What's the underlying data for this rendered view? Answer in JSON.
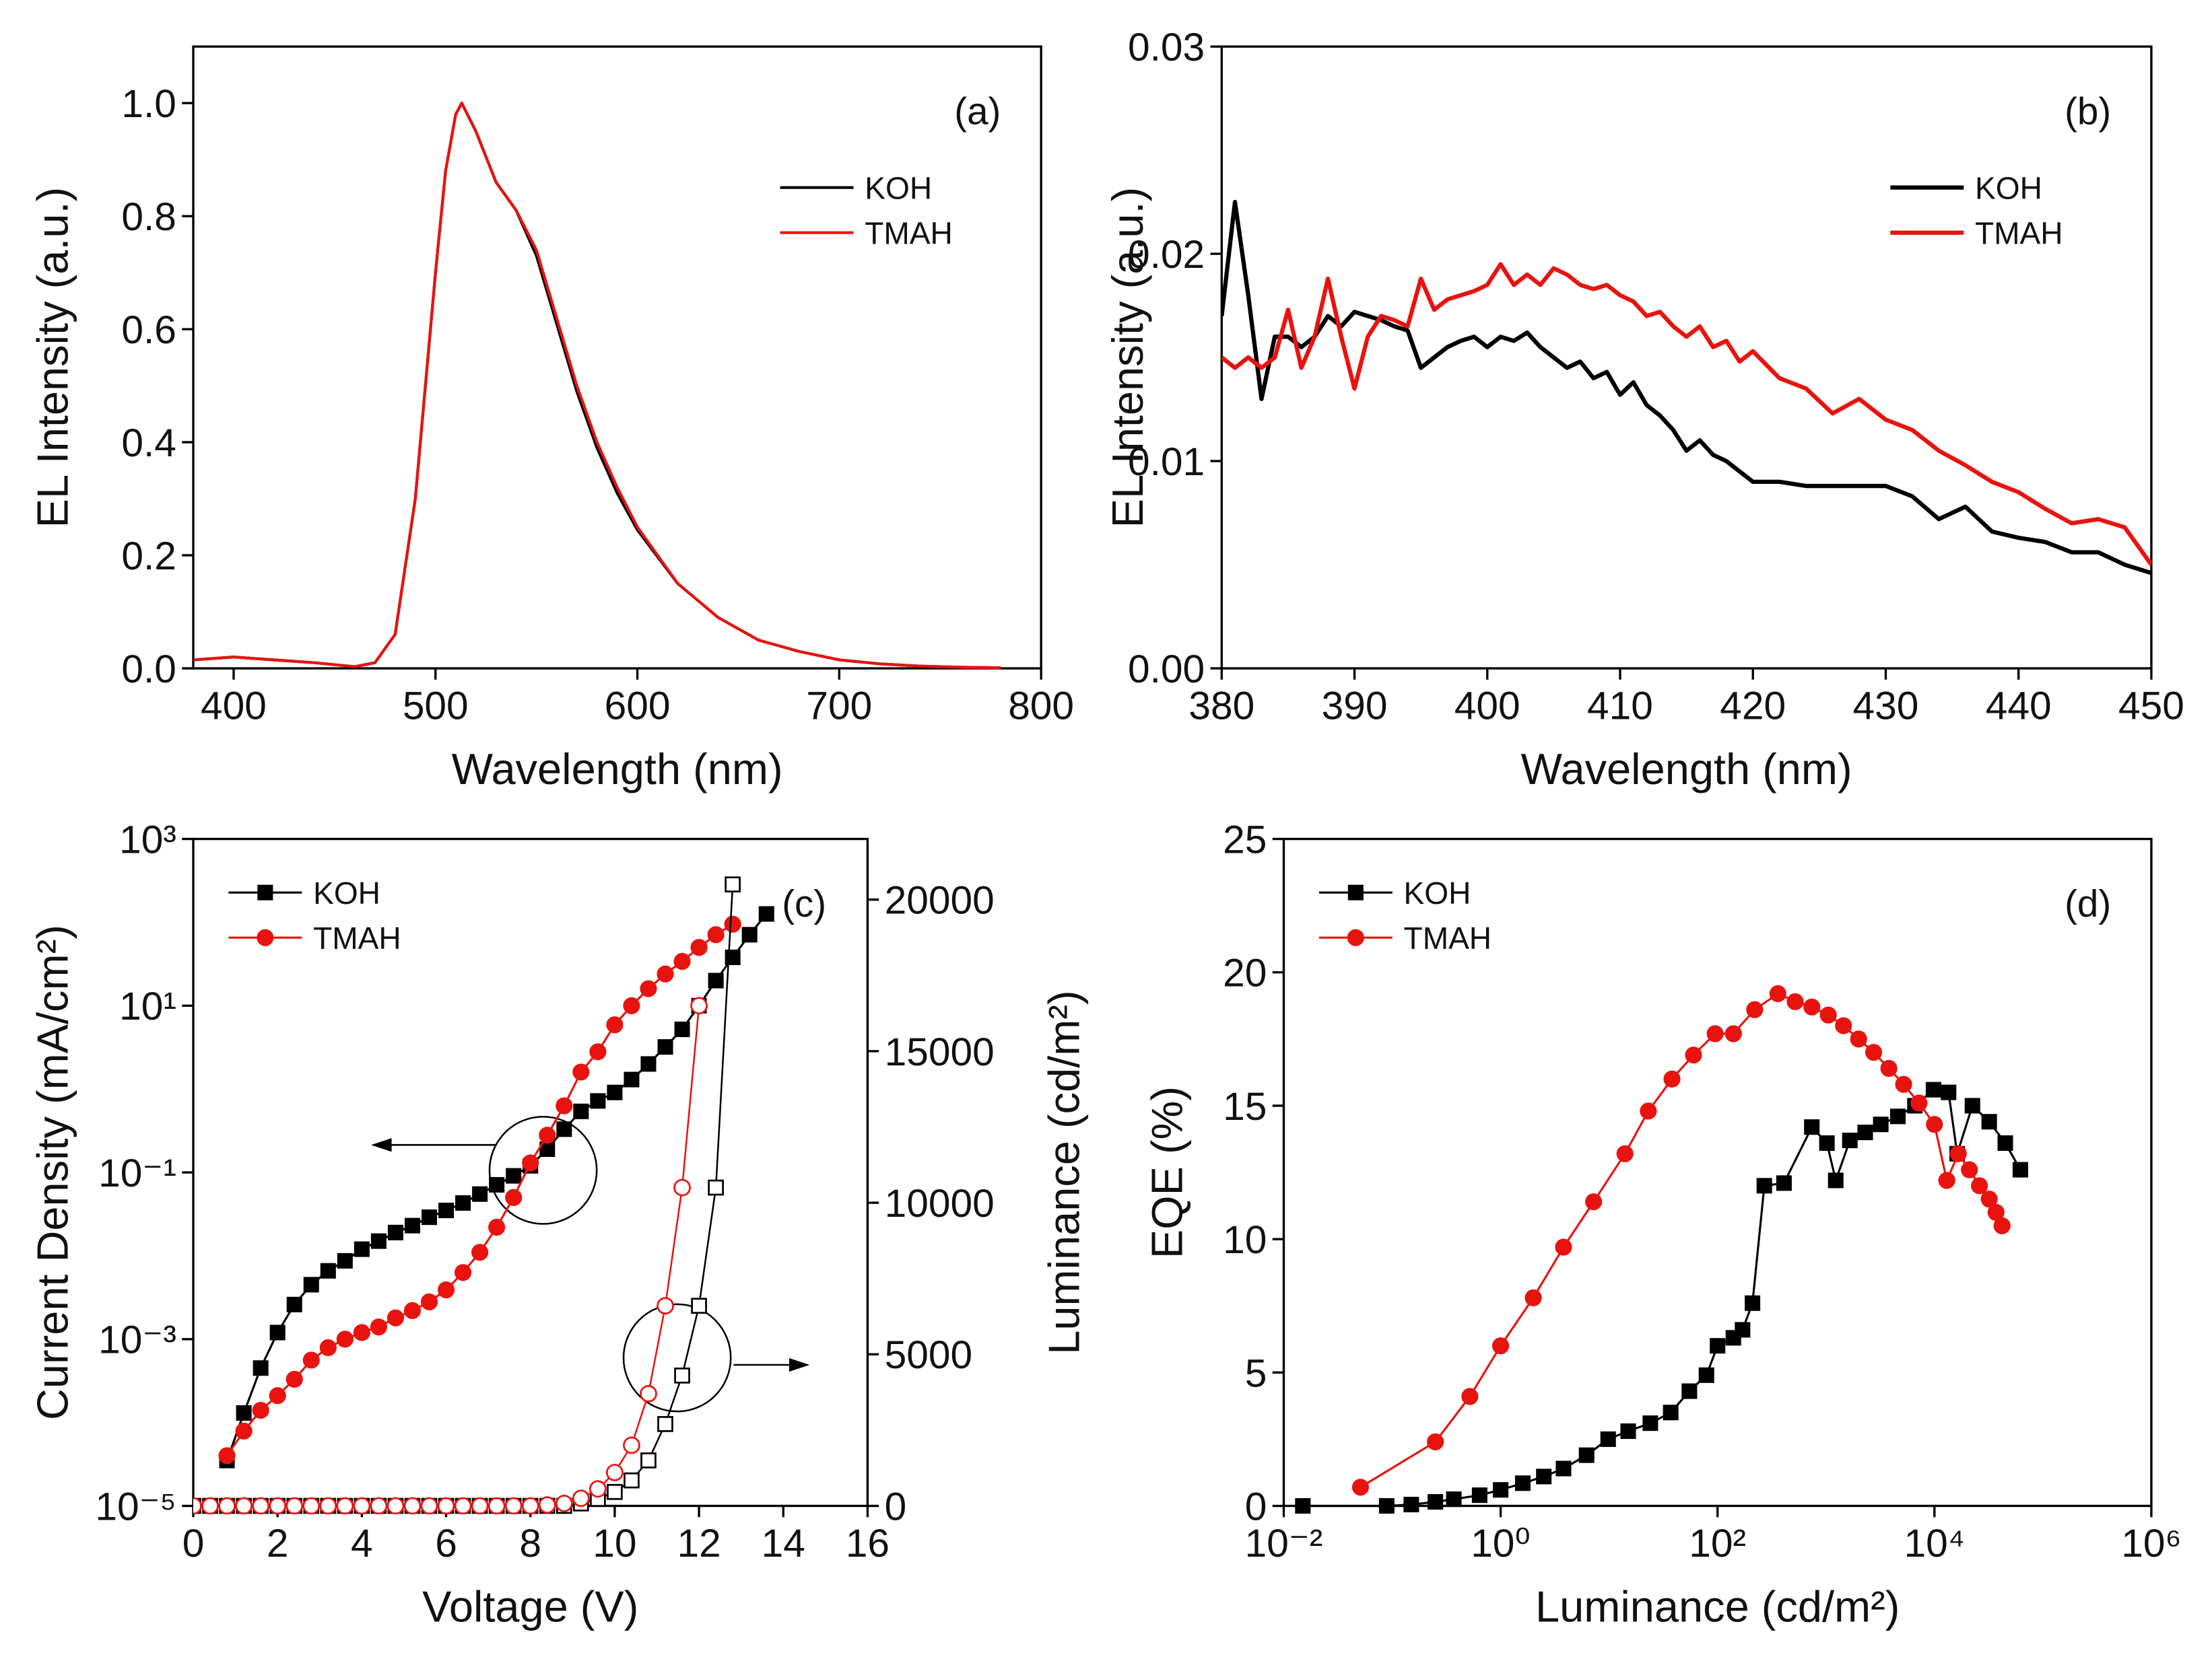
{
  "chart_data": [
    {
      "type": "line",
      "annotation": "(a)",
      "xlabel": "Wavelength (nm)",
      "ylabel": "EL Intensity (a.u.)",
      "legend": "upper right",
      "xlim": [
        380,
        800
      ],
      "xticks": [
        400,
        500,
        600,
        700,
        800
      ],
      "ylim": [
        0,
        1.1
      ],
      "yticks": [
        {
          "value": 0,
          "label": "0.0"
        },
        0.2,
        0.4,
        0.6,
        0.8,
        {
          "value": 1,
          "label": "1.0"
        }
      ],
      "x": [
        380,
        400,
        420,
        440,
        460,
        470,
        480,
        490,
        500,
        505,
        510,
        513,
        520,
        530,
        540,
        550,
        560,
        570,
        580,
        590,
        600,
        620,
        640,
        660,
        680,
        700,
        720,
        740,
        760,
        780
      ],
      "series": [
        {
          "name": "KOH",
          "color": "#000000",
          "line_width": 2,
          "values": [
            0.015,
            0.02,
            0.015,
            0.01,
            0.003,
            0.01,
            0.06,
            0.3,
            0.7,
            0.88,
            0.98,
            1.0,
            0.95,
            0.86,
            0.81,
            0.73,
            0.61,
            0.49,
            0.39,
            0.31,
            0.245,
            0.15,
            0.09,
            0.05,
            0.03,
            0.015,
            0.008,
            0.004,
            0.002,
            0.001
          ]
        },
        {
          "name": "TMAH",
          "color": "#e8130f",
          "line_width": 2,
          "values": [
            0.015,
            0.02,
            0.015,
            0.01,
            0.003,
            0.01,
            0.06,
            0.3,
            0.7,
            0.88,
            0.98,
            1.0,
            0.95,
            0.86,
            0.81,
            0.74,
            0.62,
            0.5,
            0.4,
            0.32,
            0.25,
            0.15,
            0.09,
            0.05,
            0.03,
            0.015,
            0.008,
            0.004,
            0.002,
            0.001
          ]
        }
      ]
    },
    {
      "type": "line",
      "annotation": "(b)",
      "xlabel": "Wavelength (nm)",
      "ylabel": "EL Intensity (a.u.)",
      "legend": "upper right",
      "xlim": [
        380,
        450
      ],
      "xticks": [
        380,
        390,
        400,
        410,
        420,
        430,
        440,
        450
      ],
      "ylim": [
        0,
        0.03
      ],
      "yticks": [
        {
          "value": 0,
          "label": "0.00"
        },
        0.01,
        0.02,
        0.03
      ],
      "x": [
        380,
        381,
        382,
        383,
        384,
        385,
        386,
        387,
        388,
        389,
        390,
        391,
        392,
        393,
        394,
        395,
        396,
        397,
        398,
        399,
        400,
        401,
        402,
        403,
        404,
        405,
        406,
        407,
        408,
        409,
        410,
        411,
        412,
        413,
        414,
        415,
        416,
        417,
        418,
        419,
        420,
        422,
        424,
        426,
        428,
        430,
        432,
        434,
        436,
        438,
        440,
        442,
        444,
        446,
        448,
        450
      ],
      "series": [
        {
          "name": "KOH",
          "color": "#000000",
          "line_width": 3,
          "values": [
            0.017,
            0.0225,
            0.018,
            0.013,
            0.016,
            0.016,
            0.0155,
            0.016,
            0.017,
            0.0165,
            0.0172,
            0.017,
            0.0168,
            0.0165,
            0.0163,
            0.0145,
            0.015,
            0.0155,
            0.0158,
            0.016,
            0.0155,
            0.016,
            0.0158,
            0.0162,
            0.0155,
            0.015,
            0.0145,
            0.0148,
            0.014,
            0.0143,
            0.0132,
            0.0138,
            0.0127,
            0.0122,
            0.0115,
            0.0105,
            0.011,
            0.0103,
            0.01,
            0.0095,
            0.009,
            0.009,
            0.0088,
            0.0088,
            0.0088,
            0.0088,
            0.0083,
            0.0072,
            0.0078,
            0.0066,
            0.0063,
            0.0061,
            0.0056,
            0.0056,
            0.005,
            0.0046
          ]
        },
        {
          "name": "TMAH",
          "color": "#e8130f",
          "line_width": 3,
          "values": [
            0.015,
            0.0145,
            0.015,
            0.0145,
            0.015,
            0.0173,
            0.0145,
            0.016,
            0.0188,
            0.016,
            0.0135,
            0.016,
            0.017,
            0.0168,
            0.0165,
            0.0188,
            0.0173,
            0.0178,
            0.018,
            0.0182,
            0.0185,
            0.0195,
            0.0185,
            0.019,
            0.0185,
            0.0193,
            0.019,
            0.0185,
            0.0183,
            0.0185,
            0.018,
            0.0177,
            0.017,
            0.0172,
            0.0165,
            0.016,
            0.0165,
            0.0155,
            0.0158,
            0.0148,
            0.0153,
            0.014,
            0.0135,
            0.0123,
            0.013,
            0.012,
            0.0115,
            0.0105,
            0.0098,
            0.009,
            0.0085,
            0.0077,
            0.007,
            0.0072,
            0.0068,
            0.005
          ]
        }
      ]
    },
    {
      "type": "line",
      "annotation": "(c)",
      "xlabel": "Voltage (V)",
      "ylabel": "Current Density (mA/cm²)",
      "y2label": "Luminance (cd/m²)",
      "legend": "upper left",
      "xlim": [
        0,
        16
      ],
      "xticks": [
        0,
        2,
        4,
        6,
        8,
        10,
        12,
        14,
        16
      ],
      "yscale": "log",
      "ylim": [
        1e-05,
        1000
      ],
      "yticks": [
        {
          "value": 1e-05,
          "label": "10⁻⁵"
        },
        {
          "value": 0.001,
          "label": "10⁻³"
        },
        {
          "value": 0.1,
          "label": "10⁻¹"
        },
        {
          "value": 10,
          "label": "10¹"
        },
        {
          "value": 1000,
          "label": "10³"
        }
      ],
      "y2lim": [
        0,
        22000
      ],
      "y2ticks": [
        0,
        5000,
        10000,
        15000,
        20000
      ],
      "x": [
        0,
        0.4,
        0.8,
        1.2,
        1.6,
        2,
        2.4,
        2.8,
        3.2,
        3.6,
        4,
        4.4,
        4.8,
        5.2,
        5.6,
        6,
        6.4,
        6.8,
        7.2,
        7.6,
        8,
        8.4,
        8.8,
        9.2,
        9.6,
        10,
        10.4,
        10.8,
        11.2,
        11.6,
        12,
        12.4,
        12.8,
        13.2,
        13.6
      ],
      "series": [
        {
          "name": "KOH",
          "color": "#000000",
          "line_width": 1.5,
          "marker": "square",
          "marker_fill": "filled",
          "values": [
            null,
            null,
            3.5e-05,
            0.00013,
            0.00045,
            0.0012,
            0.0026,
            0.0045,
            0.0066,
            0.0087,
            0.012,
            0.015,
            0.019,
            0.023,
            0.029,
            0.035,
            0.043,
            0.055,
            0.071,
            0.091,
            0.12,
            0.19,
            0.33,
            0.54,
            0.72,
            0.91,
            1.3,
            2.0,
            3.2,
            5.2,
            10,
            20,
            38,
            71,
            126
          ]
        },
        {
          "name": "TMAH",
          "color": "#e8130f",
          "line_width": 1.5,
          "marker": "circle",
          "marker_fill": "filled",
          "values": [
            null,
            null,
            4e-05,
            7.9e-05,
            0.00014,
            0.00021,
            0.00033,
            0.00056,
            0.00079,
            0.001,
            0.0012,
            0.0014,
            0.0018,
            0.0022,
            0.0028,
            0.0039,
            0.0063,
            0.011,
            0.022,
            0.05,
            0.13,
            0.28,
            0.63,
            1.6,
            2.8,
            5.9,
            10,
            16,
            24,
            34,
            50,
            71,
            95,
            null,
            null
          ]
        },
        {
          "color": "#000000",
          "line_width": 1.2,
          "marker": "square",
          "marker_fill": "open",
          "axis": "y2",
          "values": [
            0,
            0,
            0,
            0,
            0,
            0,
            0,
            0,
            0,
            0,
            0,
            0,
            0,
            0,
            0,
            0,
            0,
            0,
            0,
            0,
            0,
            0,
            0,
            80,
            230,
            460,
            840,
            1500,
            2700,
            4300,
            6600,
            10500,
            20500,
            null,
            null
          ]
        },
        {
          "color": "#e8130f",
          "line_width": 1.2,
          "marker": "circle",
          "marker_fill": "open",
          "axis": "y2",
          "values": [
            0,
            0,
            0,
            0,
            0,
            0,
            0,
            0,
            0,
            0,
            0,
            0,
            0,
            0,
            0,
            0,
            0,
            0,
            0,
            0,
            0,
            30,
            80,
            250,
            560,
            1100,
            2000,
            3700,
            6600,
            10500,
            16500,
            null,
            null,
            null,
            null
          ]
        }
      ]
    },
    {
      "type": "line",
      "annotation": "(d)",
      "xlabel": "Luminance (cd/m²)",
      "ylabel": "EQE (%)",
      "legend": "upper left",
      "xscale": "log",
      "xlim": [
        0.01,
        1000000
      ],
      "xticks": [
        {
          "value": 0.01,
          "label": "10⁻²"
        },
        {
          "value": 1,
          "label": "10⁰"
        },
        {
          "value": 100,
          "label": "10²"
        },
        {
          "value": 10000,
          "label": "10⁴"
        },
        {
          "value": 1000000,
          "label": "10⁶"
        }
      ],
      "ylim": [
        0,
        25
      ],
      "yticks": [
        0,
        5,
        10,
        15,
        20,
        25
      ],
      "series": [
        {
          "name": "KOH",
          "color": "#000000",
          "line_width": 1.5,
          "marker": "square",
          "marker_fill": "filled",
          "x": [
            0.015,
            0.089,
            0.15,
            0.25,
            0.37,
            0.64,
            1.0,
            1.6,
            2.5,
            3.8,
            6.2,
            9.8,
            15,
            24,
            37,
            55,
            79,
            100,
            140,
            170,
            210,
            270,
            410,
            740,
            1020,
            1230,
            1660,
            2300,
            3200,
            4600,
            6600,
            9800,
            13500,
            16200,
            22400,
            32000,
            45000,
            62000
          ],
          "values": [
            0,
            0,
            0.05,
            0.15,
            0.25,
            0.4,
            0.6,
            0.85,
            1.1,
            1.4,
            1.9,
            2.5,
            2.8,
            3.1,
            3.5,
            4.3,
            4.9,
            6.0,
            6.3,
            6.6,
            7.6,
            12.0,
            12.1,
            14.2,
            13.6,
            12.2,
            13.7,
            14.0,
            14.3,
            14.6,
            15.0,
            15.6,
            15.5,
            13.2,
            15.0,
            14.4,
            13.6,
            12.6
          ]
        },
        {
          "name": "TMAH",
          "color": "#e8130f",
          "line_width": 1.5,
          "marker": "circle",
          "marker_fill": "filled",
          "x": [
            0.051,
            0.25,
            0.52,
            1.0,
            2.0,
            3.8,
            7.2,
            14,
            23,
            38,
            60,
            95,
            140,
            220,
            360,
            520,
            740,
            1050,
            1450,
            2000,
            2750,
            3800,
            5200,
            7200,
            10000,
            13000,
            16600,
            21000,
            26000,
            32000,
            37000,
            42000
          ],
          "values": [
            0.7,
            2.4,
            4.1,
            6.0,
            7.8,
            9.7,
            11.4,
            13.2,
            14.8,
            16.0,
            16.9,
            17.7,
            17.7,
            18.6,
            19.2,
            18.9,
            18.7,
            18.4,
            18.0,
            17.5,
            17.0,
            16.4,
            15.8,
            15.1,
            14.3,
            12.2,
            13.2,
            12.6,
            12.0,
            11.5,
            11.0,
            10.5
          ]
        }
      ]
    }
  ]
}
